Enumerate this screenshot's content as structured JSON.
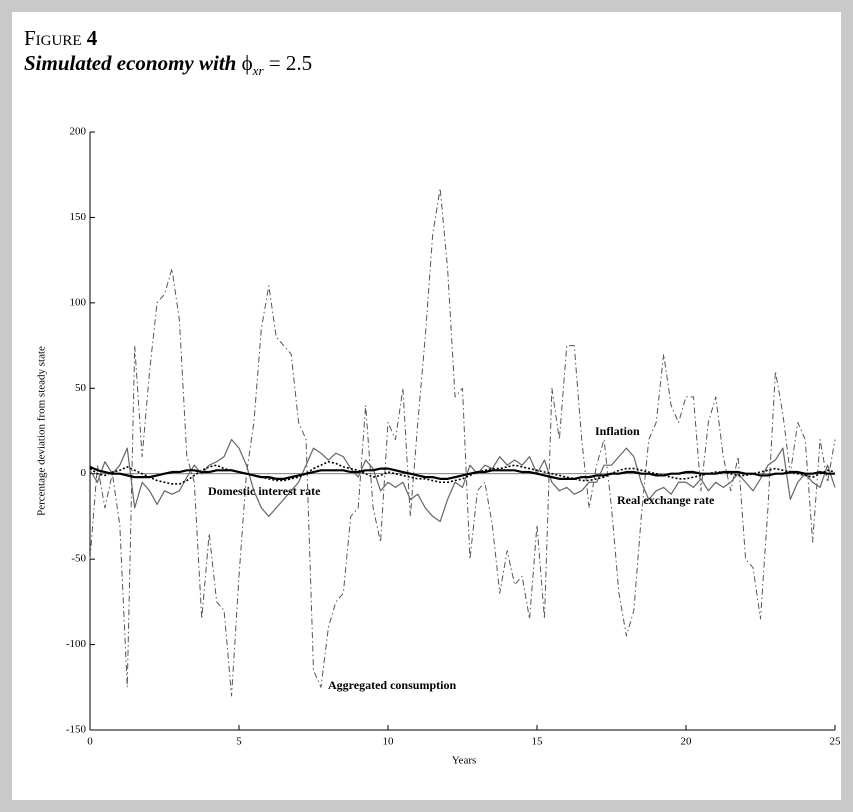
{
  "chart_data": {
    "type": "line",
    "figure_label": "Figure",
    "figure_number": "4",
    "subtitle": "Simulated economy with",
    "symbol": "ϕ",
    "symbol_subscript": "xr",
    "subtitle_value": "= 2.5",
    "xlabel": "Years",
    "ylabel": "Percentage deviation from steady state",
    "xlim": [
      0,
      25
    ],
    "ylim": [
      -150,
      200
    ],
    "xticks": [
      0,
      5,
      10,
      15,
      20,
      25
    ],
    "yticks": [
      200,
      150,
      100,
      50,
      0,
      -50,
      -100,
      -150
    ],
    "x": [
      0,
      0.25,
      0.5,
      0.75,
      1,
      1.25,
      1.5,
      1.75,
      2,
      2.25,
      2.5,
      2.75,
      3,
      3.25,
      3.5,
      3.75,
      4,
      4.25,
      4.5,
      4.75,
      5,
      5.25,
      5.5,
      5.75,
      6,
      6.25,
      6.5,
      6.75,
      7,
      7.25,
      7.5,
      7.75,
      8,
      8.25,
      8.5,
      8.75,
      9,
      9.25,
      9.5,
      9.75,
      10,
      10.25,
      10.5,
      10.75,
      11,
      11.25,
      11.5,
      11.75,
      12,
      12.25,
      12.5,
      12.75,
      13,
      13.25,
      13.5,
      13.75,
      14,
      14.25,
      14.5,
      14.75,
      15,
      15.25,
      15.5,
      15.75,
      16,
      16.25,
      16.5,
      16.75,
      17,
      17.25,
      17.5,
      17.75,
      18,
      18.25,
      18.5,
      18.75,
      19,
      19.25,
      19.5,
      19.75,
      20,
      20.25,
      20.5,
      20.75,
      21,
      21.25,
      21.5,
      21.75,
      22,
      22.25,
      22.5,
      22.75,
      23,
      23.25,
      23.5,
      23.75,
      24,
      24.25,
      24.5,
      24.75,
      25
    ],
    "series": [
      {
        "name": "Aggregated consumption",
        "color": "#555555",
        "style": "dashdot",
        "values": [
          -50,
          5,
          -20,
          0,
          -30,
          -125,
          75,
          10,
          60,
          100,
          105,
          120,
          90,
          10,
          -5,
          -85,
          -35,
          -75,
          -80,
          -130,
          -60,
          0,
          30,
          85,
          110,
          80,
          75,
          70,
          30,
          20,
          -115,
          -125,
          -90,
          -75,
          -70,
          -25,
          -20,
          40,
          -20,
          -40,
          30,
          20,
          50,
          -25,
          30,
          80,
          140,
          167,
          120,
          45,
          50,
          -50,
          -10,
          -5,
          -30,
          -70,
          -45,
          -65,
          -60,
          -85,
          -30,
          -85,
          50,
          20,
          75,
          75,
          20,
          -20,
          5,
          20,
          -20,
          -70,
          -95,
          -80,
          -25,
          20,
          30,
          70,
          40,
          30,
          45,
          45,
          -10,
          30,
          45,
          10,
          -10,
          10,
          -50,
          -55,
          -85,
          -20,
          60,
          35,
          0,
          30,
          20,
          -40,
          20,
          -5,
          20
        ]
      },
      {
        "name": "Inflation",
        "color": "#666666",
        "style": "solid",
        "values": [
          2,
          -5,
          7,
          0,
          5,
          15,
          -20,
          -5,
          -10,
          -18,
          -10,
          -12,
          -10,
          -2,
          5,
          0,
          5,
          7,
          10,
          20,
          15,
          5,
          -10,
          -20,
          -25,
          -20,
          -15,
          -10,
          -5,
          5,
          15,
          12,
          8,
          12,
          10,
          3,
          -2,
          8,
          3,
          -10,
          -5,
          -8,
          -5,
          -15,
          -12,
          -20,
          -25,
          -28,
          -15,
          -5,
          -8,
          5,
          0,
          5,
          3,
          10,
          5,
          8,
          5,
          10,
          0,
          8,
          -5,
          -10,
          -8,
          -12,
          -10,
          -5,
          -5,
          5,
          5,
          10,
          15,
          10,
          -5,
          -15,
          -10,
          -8,
          -12,
          -5,
          -5,
          -8,
          -3,
          -10,
          -5,
          -8,
          -5,
          0,
          -5,
          -10,
          -3,
          5,
          8,
          15,
          -15,
          -5,
          0,
          -5,
          -8,
          5,
          -8
        ]
      },
      {
        "name": "Domestic interest rate",
        "color": "#000000",
        "style": "dotted",
        "values": [
          3,
          0,
          -1,
          1,
          2,
          4,
          2,
          0,
          -2,
          -4,
          -5,
          -6,
          -6,
          -4,
          -1,
          2,
          4,
          5,
          3,
          2,
          1,
          0,
          -1,
          -2,
          -3,
          -4,
          -4,
          -3,
          -2,
          0,
          3,
          5,
          7,
          6,
          4,
          3,
          2,
          0,
          -2,
          -1,
          1,
          0,
          -1,
          -2,
          -3,
          -3,
          -4,
          -5,
          -5,
          -4,
          -3,
          -1,
          1,
          2,
          3,
          3,
          4,
          5,
          4,
          3,
          2,
          1,
          0,
          -1,
          -2,
          -3,
          -4,
          -4,
          -3,
          -2,
          0,
          2,
          3,
          3,
          2,
          1,
          0,
          -1,
          -2,
          -3,
          -3,
          -2,
          -1,
          0,
          1,
          1,
          0,
          -1,
          -1,
          0,
          1,
          2,
          3,
          2,
          1,
          0,
          -1,
          -2,
          0,
          2,
          1
        ]
      },
      {
        "name": "Real exchange rate",
        "color": "#000000",
        "style": "thick",
        "values": [
          4,
          2,
          1,
          0,
          0,
          -1,
          -2,
          -2,
          -2,
          -1,
          0,
          1,
          1,
          2,
          2,
          1,
          1,
          2,
          2,
          2,
          1,
          0,
          -1,
          -2,
          -2,
          -3,
          -3,
          -2,
          -1,
          0,
          1,
          2,
          2,
          2,
          2,
          1,
          1,
          2,
          2,
          3,
          3,
          2,
          1,
          0,
          -1,
          -2,
          -2,
          -3,
          -3,
          -2,
          -1,
          0,
          1,
          1,
          2,
          2,
          2,
          2,
          1,
          1,
          0,
          -1,
          -2,
          -3,
          -3,
          -3,
          -2,
          -2,
          -1,
          -1,
          0,
          0,
          1,
          1,
          0,
          0,
          -1,
          -1,
          0,
          0,
          1,
          1,
          0,
          0,
          0,
          1,
          1,
          1,
          0,
          0,
          -1,
          -1,
          0,
          0,
          1,
          1,
          0,
          0,
          1,
          0,
          0
        ]
      }
    ]
  }
}
